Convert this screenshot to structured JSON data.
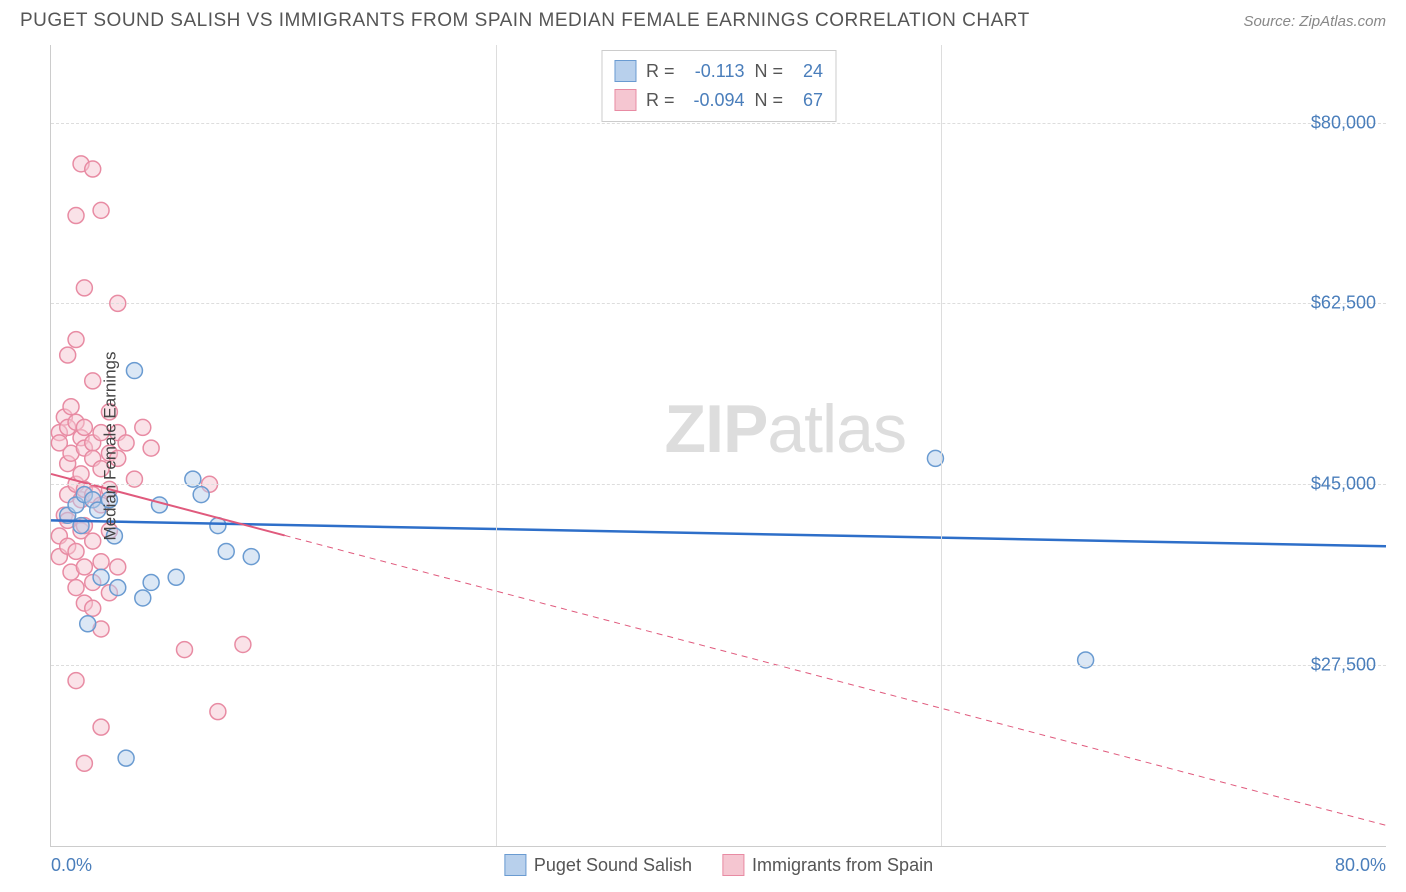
{
  "title": "PUGET SOUND SALISH VS IMMIGRANTS FROM SPAIN MEDIAN FEMALE EARNINGS CORRELATION CHART",
  "source": "Source: ZipAtlas.com",
  "watermark_bold": "ZIP",
  "watermark_light": "atlas",
  "chart": {
    "type": "scatter",
    "background_color": "#ffffff",
    "grid_color": "#dddddd",
    "axis_color": "#cccccc",
    "text_color": "#555555",
    "value_color": "#4a7ebb",
    "xlim": [
      0,
      80
    ],
    "ylim": [
      10000,
      87500
    ],
    "x_ticks": [
      0,
      80
    ],
    "x_tick_labels": [
      "0.0%",
      "80.0%"
    ],
    "x_minor_ticks": [
      26.67,
      53.33
    ],
    "y_ticks": [
      27500,
      45000,
      62500,
      80000
    ],
    "y_tick_labels": [
      "$27,500",
      "$45,000",
      "$62,500",
      "$80,000"
    ],
    "y_axis_label": "Median Female Earnings",
    "marker_radius": 8,
    "marker_stroke_width": 1.5,
    "series": [
      {
        "name": "Puget Sound Salish",
        "fill_color": "#b8d0ec",
        "stroke_color": "#6a9bd1",
        "fill_opacity": 0.5,
        "R": "-0.113",
        "N": "24",
        "regression": {
          "x1": 0,
          "y1": 41500,
          "x2": 80,
          "y2": 39000,
          "solid_until_x": 80,
          "color": "#2e6fc9",
          "width": 2.5
        },
        "points": [
          [
            1.0,
            42000
          ],
          [
            1.5,
            43000
          ],
          [
            2.0,
            44000
          ],
          [
            2.2,
            31500
          ],
          [
            2.5,
            43500
          ],
          [
            3.0,
            36000
          ],
          [
            3.5,
            43500
          ],
          [
            4.0,
            35000
          ],
          [
            4.5,
            18500
          ],
          [
            5.0,
            56000
          ],
          [
            5.5,
            34000
          ],
          [
            6.0,
            35500
          ],
          [
            6.5,
            43000
          ],
          [
            7.5,
            36000
          ],
          [
            8.5,
            45500
          ],
          [
            9.0,
            44000
          ],
          [
            10.0,
            41000
          ],
          [
            10.5,
            38500
          ],
          [
            12.0,
            38000
          ],
          [
            53.0,
            47500
          ],
          [
            1.8,
            41000
          ],
          [
            2.8,
            42500
          ],
          [
            62.0,
            28000
          ],
          [
            3.8,
            40000
          ]
        ]
      },
      {
        "name": "Immigrants from Spain",
        "fill_color": "#f5c6d1",
        "stroke_color": "#e88ba3",
        "fill_opacity": 0.5,
        "R": "-0.094",
        "N": "67",
        "regression": {
          "x1": 0,
          "y1": 46000,
          "x2": 80,
          "y2": 12000,
          "solid_until_x": 14,
          "color": "#e05a7d",
          "width": 2,
          "dash": "6,5"
        },
        "points": [
          [
            0.5,
            50000
          ],
          [
            0.5,
            49000
          ],
          [
            0.5,
            40000
          ],
          [
            0.5,
            38000
          ],
          [
            0.8,
            51500
          ],
          [
            0.8,
            42000
          ],
          [
            1.0,
            57500
          ],
          [
            1.0,
            50500
          ],
          [
            1.0,
            47000
          ],
          [
            1.0,
            44000
          ],
          [
            1.0,
            41500
          ],
          [
            1.0,
            39000
          ],
          [
            1.2,
            52500
          ],
          [
            1.2,
            48000
          ],
          [
            1.2,
            36500
          ],
          [
            1.5,
            71000
          ],
          [
            1.5,
            59000
          ],
          [
            1.5,
            51000
          ],
          [
            1.5,
            45000
          ],
          [
            1.5,
            38500
          ],
          [
            1.5,
            35000
          ],
          [
            1.5,
            26000
          ],
          [
            1.8,
            76000
          ],
          [
            1.8,
            49500
          ],
          [
            1.8,
            46000
          ],
          [
            1.8,
            43500
          ],
          [
            1.8,
            40500
          ],
          [
            2.0,
            64000
          ],
          [
            2.0,
            50500
          ],
          [
            2.0,
            48500
          ],
          [
            2.0,
            44500
          ],
          [
            2.0,
            41000
          ],
          [
            2.0,
            37000
          ],
          [
            2.0,
            33500
          ],
          [
            2.0,
            18000
          ],
          [
            2.5,
            75500
          ],
          [
            2.5,
            55000
          ],
          [
            2.5,
            49000
          ],
          [
            2.5,
            47500
          ],
          [
            2.5,
            44000
          ],
          [
            2.5,
            39500
          ],
          [
            2.5,
            35500
          ],
          [
            2.5,
            33000
          ],
          [
            3.0,
            71500
          ],
          [
            3.0,
            50000
          ],
          [
            3.0,
            46500
          ],
          [
            3.0,
            43000
          ],
          [
            3.0,
            37500
          ],
          [
            3.0,
            31000
          ],
          [
            3.0,
            21500
          ],
          [
            3.5,
            52000
          ],
          [
            3.5,
            48000
          ],
          [
            3.5,
            44500
          ],
          [
            3.5,
            40500
          ],
          [
            3.5,
            34500
          ],
          [
            4.0,
            62500
          ],
          [
            4.0,
            50000
          ],
          [
            4.0,
            47500
          ],
          [
            4.0,
            37000
          ],
          [
            4.5,
            49000
          ],
          [
            5.0,
            45500
          ],
          [
            5.5,
            50500
          ],
          [
            6.0,
            48500
          ],
          [
            8.0,
            29000
          ],
          [
            9.5,
            45000
          ],
          [
            10.0,
            23000
          ],
          [
            11.5,
            29500
          ]
        ]
      }
    ]
  },
  "legend_top": {
    "R_label": "R =",
    "N_label": "N ="
  },
  "legend_bottom_labels": [
    "Puget Sound Salish",
    "Immigrants from Spain"
  ]
}
